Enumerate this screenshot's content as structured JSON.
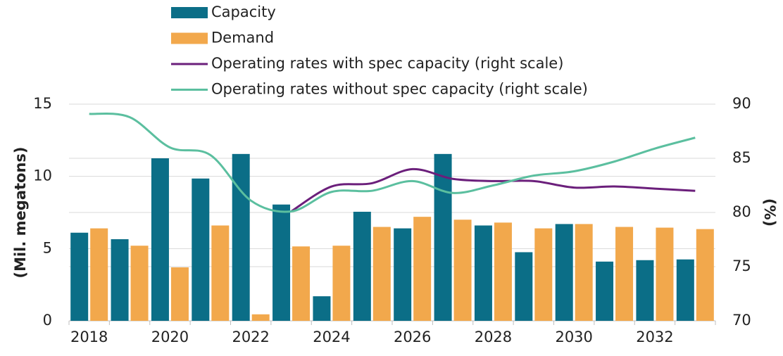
{
  "chart_data": {
    "type": "bar",
    "categories": [
      "2018",
      null,
      "2020",
      null,
      "2022",
      null,
      "2024",
      null,
      "2026",
      null,
      "2028",
      null,
      "2030",
      null,
      "2032",
      null
    ],
    "series": [
      {
        "name": "Capacity",
        "type": "bar",
        "color": "#0b6e87",
        "values": [
          6.1,
          5.65,
          11.25,
          9.85,
          11.55,
          8.05,
          1.7,
          7.55,
          6.4,
          11.55,
          6.6,
          4.75,
          6.7,
          4.1,
          4.2,
          4.25
        ]
      },
      {
        "name": "Demand",
        "type": "bar",
        "color": "#f2a84c",
        "values": [
          6.4,
          5.2,
          3.7,
          6.6,
          0.45,
          5.15,
          5.2,
          6.5,
          7.2,
          7.0,
          6.8,
          6.4,
          6.7,
          6.5,
          6.45,
          6.35
        ]
      },
      {
        "name": "Operating rates with spec capacity (right scale)",
        "type": "line",
        "axis": "y2",
        "color": "#6b1f7b",
        "values": [
          null,
          null,
          null,
          null,
          null,
          80.1,
          82.4,
          82.7,
          84.0,
          83.1,
          82.9,
          82.9,
          82.3,
          82.4,
          82.2,
          82.0
        ]
      },
      {
        "name": "Operating rates without spec capacity (right scale)",
        "type": "line",
        "axis": "y2",
        "color": "#5bbf9f",
        "values": [
          89.1,
          88.8,
          86.0,
          85.3,
          81.1,
          80.1,
          81.9,
          82.0,
          82.9,
          81.8,
          82.5,
          83.4,
          83.8,
          84.7,
          85.9,
          86.9
        ]
      }
    ],
    "ylabel": "(Mil. megatons)",
    "y2label": "(%)",
    "ylim": [
      0,
      15
    ],
    "yticks": [
      0,
      5,
      10,
      15
    ],
    "y2lim": [
      70,
      90
    ],
    "y2ticks": [
      70,
      75,
      80,
      85,
      90
    ],
    "grid": true,
    "legend": "top"
  }
}
